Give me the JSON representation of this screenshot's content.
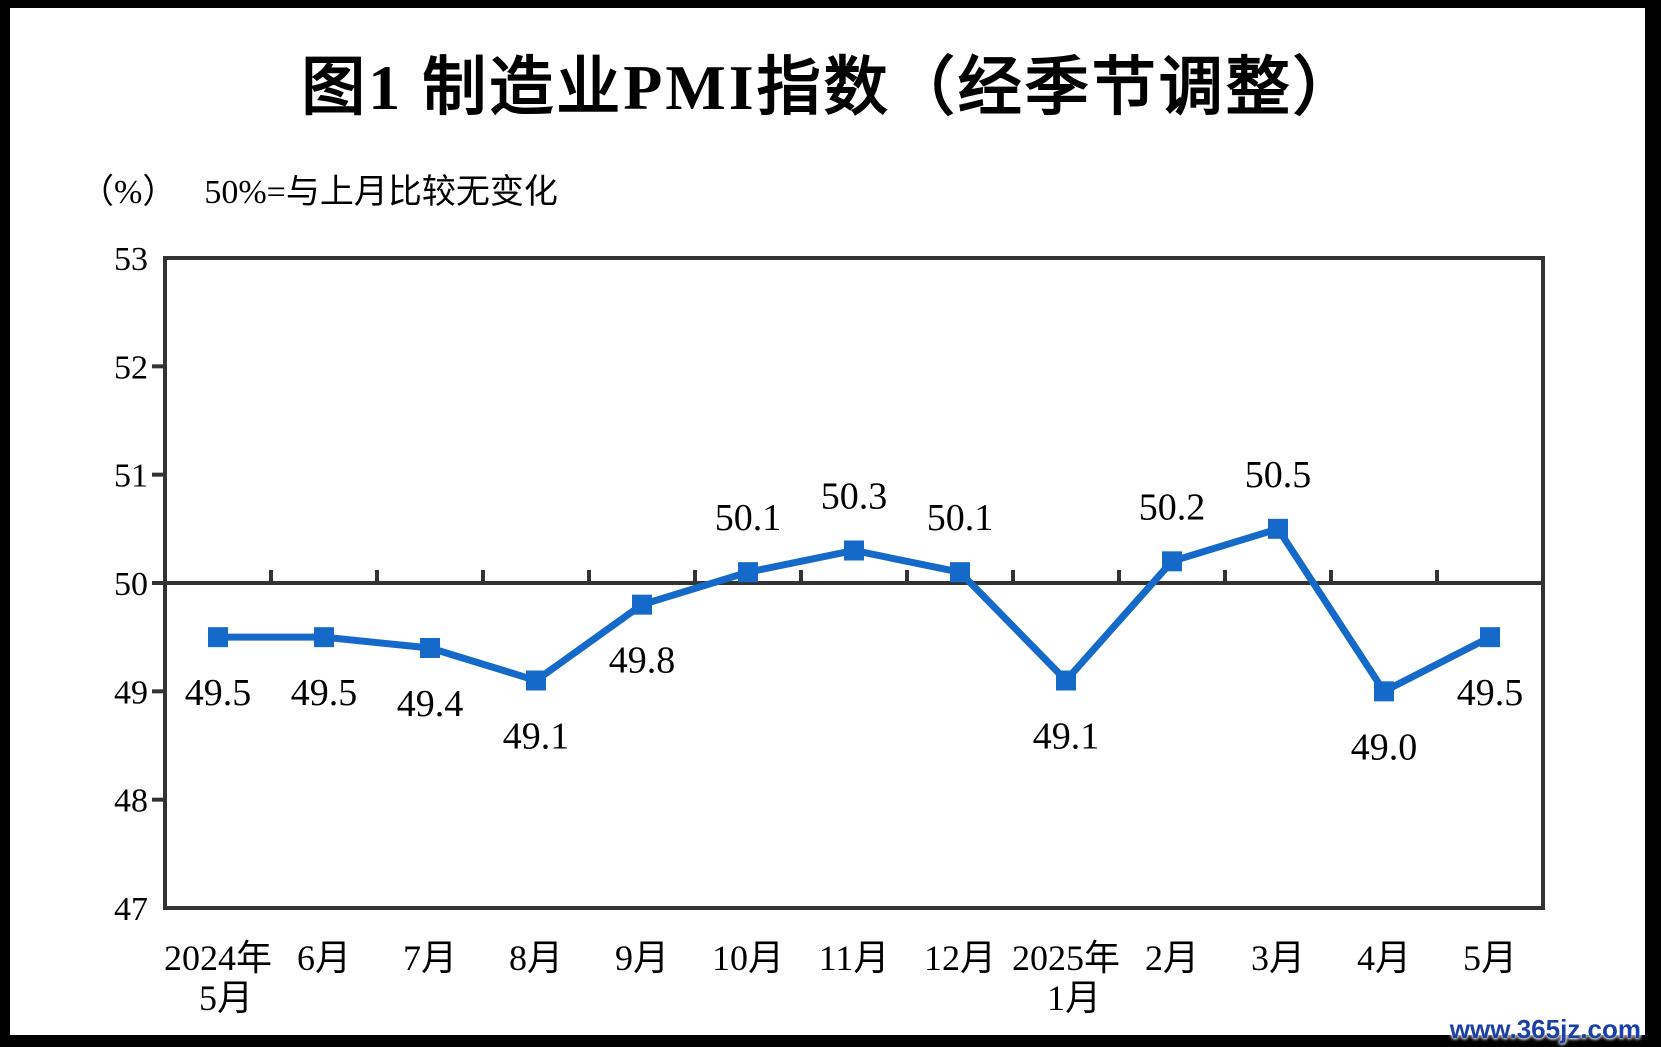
{
  "watermark": "www.365jz.com",
  "chart_data": {
    "type": "line",
    "title": "图1  制造业PMI指数（经季节调整）",
    "unit_label": "（%）",
    "note": "50%=与上月比较无变化",
    "categories": [
      "2024年",
      "6月",
      "7月",
      "8月",
      "9月",
      "10月",
      "11月",
      "12月",
      "2025年",
      "2月",
      "3月",
      "4月",
      "5月"
    ],
    "categories_line2": [
      "5月",
      "",
      "",
      "",
      "",
      "",
      "",
      "",
      "1月",
      "",
      "",
      "",
      ""
    ],
    "values": [
      49.5,
      49.5,
      49.4,
      49.1,
      49.8,
      50.1,
      50.3,
      50.1,
      49.1,
      50.2,
      50.5,
      49.0,
      49.5
    ],
    "data_labels": [
      "49.5",
      "49.5",
      "49.4",
      "49.1",
      "49.8",
      "50.1",
      "50.3",
      "50.1",
      "49.1",
      "50.2",
      "50.5",
      "49.0",
      "49.5"
    ],
    "ylim": [
      47,
      53
    ],
    "yticks": [
      47,
      48,
      49,
      50,
      51,
      52,
      53
    ],
    "reference_line": 50,
    "grid": false,
    "legend": "none",
    "xlabel": "",
    "ylabel": "",
    "line_color": "#1569C8",
    "marker": "square",
    "axis_color": "#333333",
    "label_color": "#000000"
  }
}
